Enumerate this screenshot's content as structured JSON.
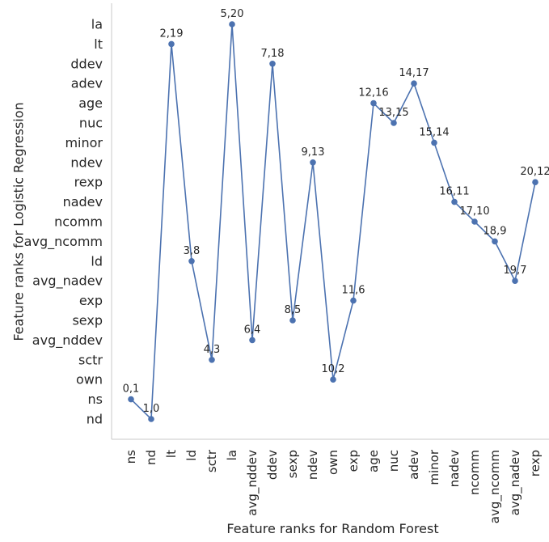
{
  "chart_data": {
    "type": "line",
    "title": "",
    "xlabel": "Feature ranks for Random Forest",
    "ylabel": "Feature ranks for Logistic Regression",
    "grid": false,
    "legend": "none",
    "colors": {
      "series": "#4c72b0",
      "text": "#262626",
      "axis": "#c8c8c8"
    },
    "x_categories": [
      "ns",
      "nd",
      "lt",
      "ld",
      "sctr",
      "la",
      "avg_nddev",
      "ddev",
      "sexp",
      "ndev",
      "own",
      "exp",
      "age",
      "nuc",
      "adev",
      "minor",
      "nadev",
      "ncomm",
      "avg_ncomm",
      "avg_nadev",
      "rexp"
    ],
    "y_categories": [
      "nd",
      "ns",
      "own",
      "sctr",
      "avg_nddev",
      "sexp",
      "exp",
      "avg_nadev",
      "ld",
      "avg_ncomm",
      "ncomm",
      "nadev",
      "rexp",
      "ndev",
      "minor",
      "nuc",
      "age",
      "adev",
      "ddev",
      "lt",
      "la"
    ],
    "points": [
      {
        "x": 0,
        "y": 1,
        "label": "0,1"
      },
      {
        "x": 1,
        "y": 0,
        "label": "1,0"
      },
      {
        "x": 2,
        "y": 19,
        "label": "2,19"
      },
      {
        "x": 3,
        "y": 8,
        "label": "3,8"
      },
      {
        "x": 4,
        "y": 3,
        "label": "4,3"
      },
      {
        "x": 5,
        "y": 20,
        "label": "5,20"
      },
      {
        "x": 6,
        "y": 4,
        "label": "6,4"
      },
      {
        "x": 7,
        "y": 18,
        "label": "7,18"
      },
      {
        "x": 8,
        "y": 5,
        "label": "8,5"
      },
      {
        "x": 9,
        "y": 13,
        "label": "9,13"
      },
      {
        "x": 10,
        "y": 2,
        "label": "10,2"
      },
      {
        "x": 11,
        "y": 6,
        "label": "11,6"
      },
      {
        "x": 12,
        "y": 16,
        "label": "12,16"
      },
      {
        "x": 13,
        "y": 15,
        "label": "13,15"
      },
      {
        "x": 14,
        "y": 17,
        "label": "14,17"
      },
      {
        "x": 15,
        "y": 14,
        "label": "15,14"
      },
      {
        "x": 16,
        "y": 11,
        "label": "16,11"
      },
      {
        "x": 17,
        "y": 10,
        "label": "17,10"
      },
      {
        "x": 18,
        "y": 9,
        "label": "18,9"
      },
      {
        "x": 19,
        "y": 7,
        "label": "19,7"
      },
      {
        "x": 20,
        "y": 12,
        "label": "20,12"
      }
    ]
  }
}
